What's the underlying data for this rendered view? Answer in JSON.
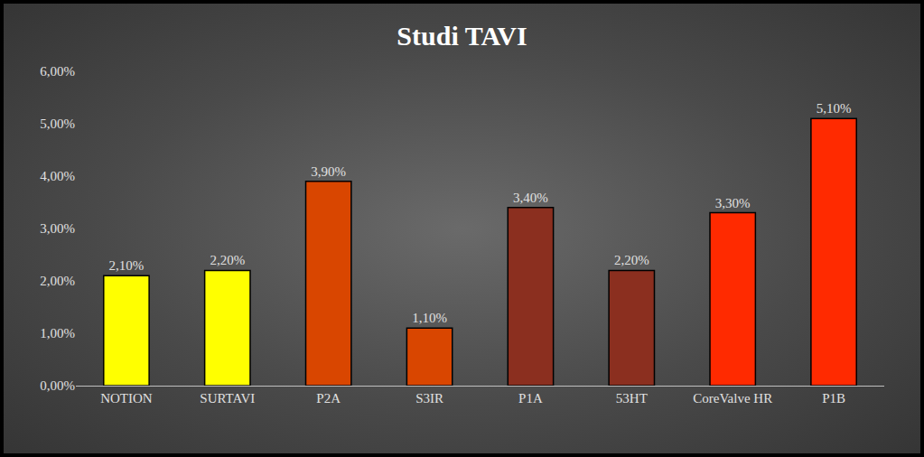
{
  "chart_data": {
    "type": "bar",
    "title": "Studi TAVI",
    "categories": [
      "NOTION",
      "SURTAVI",
      "P2A",
      "S3IR",
      "P1A",
      "53HT",
      "CoreValve HR",
      "P1B"
    ],
    "values": [
      2.1,
      2.2,
      3.9,
      1.1,
      3.4,
      2.2,
      3.3,
      5.1
    ],
    "value_labels": [
      "2,10%",
      "2,20%",
      "3,90%",
      "1,10%",
      "3,40%",
      "2,20%",
      "3,30%",
      "5,10%"
    ],
    "colors": [
      "#ffff00",
      "#ffff00",
      "#d94600",
      "#d94600",
      "#8b2f1f",
      "#8b2f1f",
      "#ff2a00",
      "#ff2a00"
    ],
    "ylim": [
      0,
      6
    ],
    "yticks": [
      {
        "value": 0,
        "label": "0,00%"
      },
      {
        "value": 1,
        "label": "1,00%"
      },
      {
        "value": 2,
        "label": "2,00%"
      },
      {
        "value": 3,
        "label": "3,00%"
      },
      {
        "value": 4,
        "label": "4,00%"
      },
      {
        "value": 5,
        "label": "5,00%"
      },
      {
        "value": 6,
        "label": "6,00%"
      }
    ],
    "grid": false,
    "data_labels": true
  }
}
